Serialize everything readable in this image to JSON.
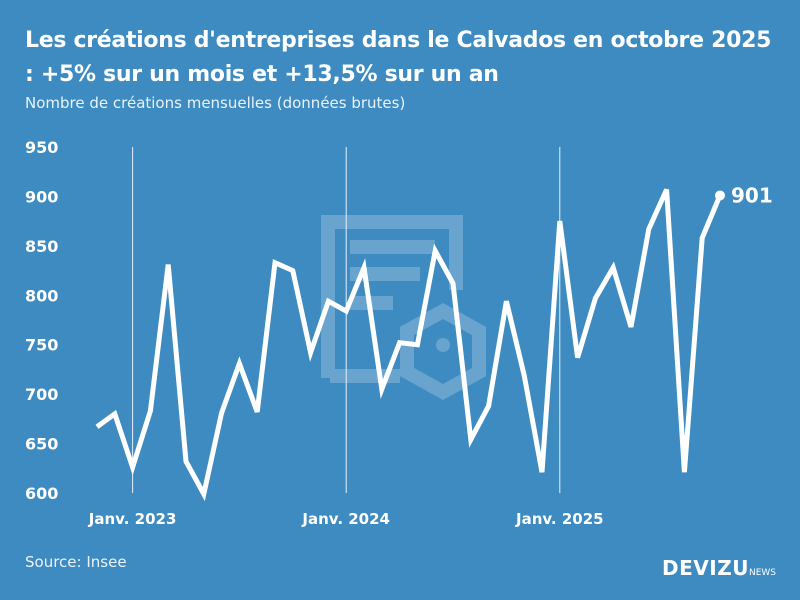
{
  "title": "Les créations d'entreprises dans le Calvados en octobre 2025 : +5% sur un mois et +13,5% sur un an",
  "subtitle": "Nombre de créations mensuelles (données brutes)",
  "source": "Source: Insee",
  "logo": {
    "main": "DEVIZU",
    "suffix": "NEWS"
  },
  "colors": {
    "background": "#3d8bc1",
    "line": "#ffffff"
  },
  "chart_data": {
    "type": "line",
    "title": "Les créations d'entreprises dans le Calvados en octobre 2025 : +5% sur un mois et +13,5% sur un an",
    "ylabel": "",
    "xlabel": "",
    "ylim": [
      600,
      950
    ],
    "yticks": [
      950,
      900,
      850,
      800,
      750,
      700,
      650,
      600
    ],
    "xticks": [
      {
        "label": "Janv. 2023",
        "x": "2023-01"
      },
      {
        "label": "Janv. 2024",
        "x": "2024-01"
      },
      {
        "label": "Janv. 2025",
        "x": "2025-01"
      }
    ],
    "grid": "vertical lines at January",
    "x": [
      "2022-11",
      "2022-12",
      "2023-01",
      "2023-02",
      "2023-03",
      "2023-04",
      "2023-05",
      "2023-06",
      "2023-07",
      "2023-08",
      "2023-09",
      "2023-10",
      "2023-11",
      "2023-12",
      "2024-01",
      "2024-02",
      "2024-03",
      "2024-04",
      "2024-05",
      "2024-06",
      "2024-07",
      "2024-08",
      "2024-09",
      "2024-10",
      "2024-11",
      "2024-12",
      "2025-01",
      "2025-02",
      "2025-03",
      "2025-04",
      "2025-05",
      "2025-06",
      "2025-07",
      "2025-08",
      "2025-09",
      "2025-10"
    ],
    "values": [
      667,
      680,
      626,
      683,
      831,
      632,
      599,
      681,
      731,
      682,
      833,
      825,
      742,
      794,
      784,
      828,
      705,
      752,
      750,
      845,
      812,
      654,
      688,
      794,
      719,
      621,
      875,
      737,
      797,
      828,
      768,
      867,
      907,
      621,
      858,
      901
    ],
    "last_label": "901"
  }
}
